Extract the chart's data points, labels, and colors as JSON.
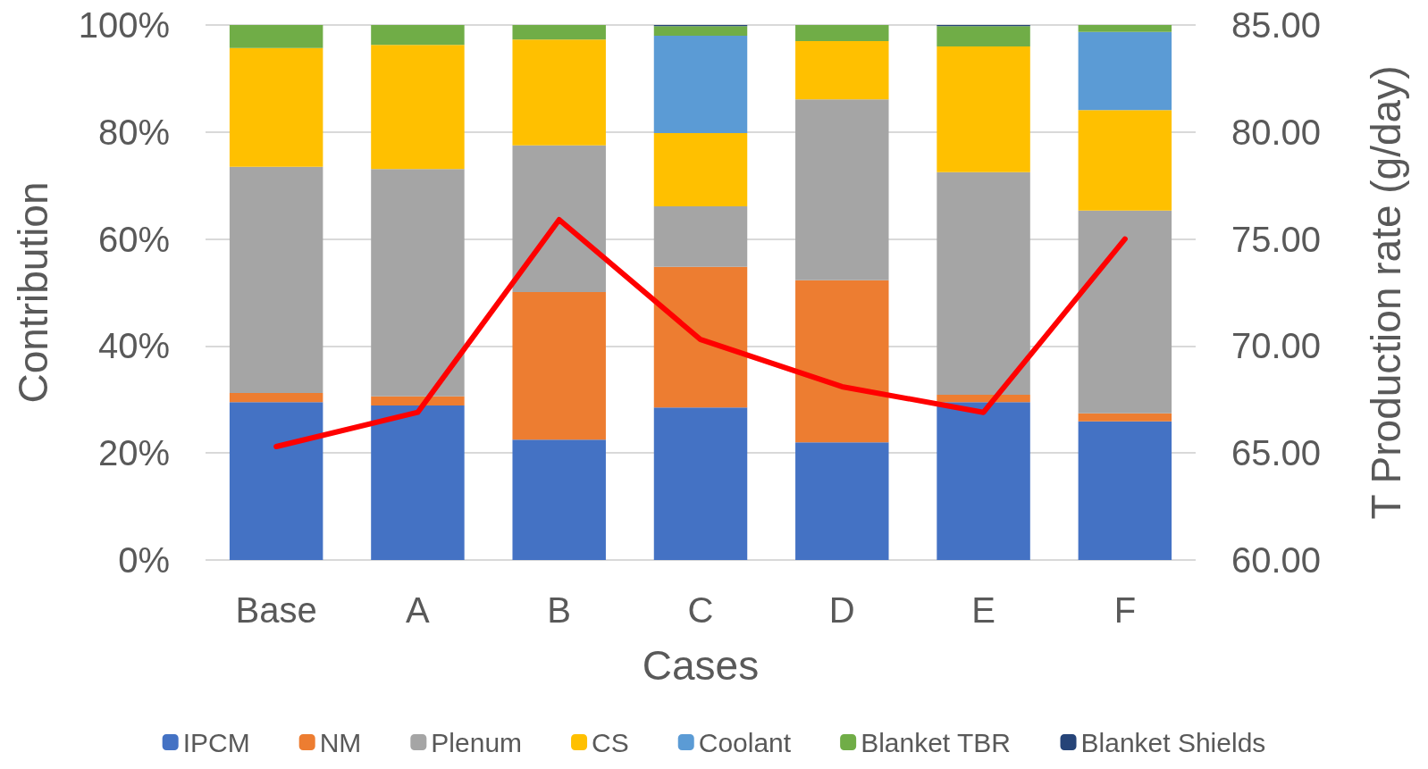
{
  "chart_data": {
    "type": "bar",
    "stacked": true,
    "xlabel": "Cases",
    "ylabel": "Contribution",
    "y2label": "T Production rate (g/day)",
    "categories": [
      "Base",
      "A",
      "B",
      "C",
      "D",
      "E",
      "F"
    ],
    "series": [
      {
        "name": "IPCM",
        "color": "#4472c4",
        "values": [
          29.5,
          28.9,
          22.5,
          28.5,
          22.0,
          29.5,
          25.9
        ]
      },
      {
        "name": "NM",
        "color": "#ed7d31",
        "values": [
          1.7,
          1.7,
          27.6,
          26.3,
          30.3,
          1.4,
          1.5
        ]
      },
      {
        "name": "Plenum",
        "color": "#a5a5a5",
        "values": [
          42.3,
          42.5,
          27.4,
          11.3,
          33.8,
          41.6,
          37.9
        ]
      },
      {
        "name": "CS",
        "color": "#ffc000",
        "values": [
          22.2,
          23.2,
          19.8,
          13.7,
          10.9,
          23.5,
          18.8
        ]
      },
      {
        "name": "Coolant",
        "color": "#5b9bd5",
        "values": [
          0,
          0,
          0,
          18.2,
          0,
          0,
          14.6
        ]
      },
      {
        "name": "Blanket TBR",
        "color": "#70ad47",
        "values": [
          4.3,
          3.7,
          2.7,
          1.8,
          3.0,
          3.8,
          1.3
        ]
      },
      {
        "name": "Blanket Shields",
        "color": "#264478",
        "values": [
          0,
          0,
          0,
          0.2,
          0,
          0.2,
          0
        ]
      },
      {
        "type": "line",
        "axis": "y2",
        "color": "#ff0000",
        "values": [
          65.3,
          66.9,
          75.9,
          70.3,
          68.1,
          66.9,
          75.0
        ]
      }
    ],
    "ylim": [
      0,
      100
    ],
    "yticks": [
      {
        "value": 0,
        "label": "0%"
      },
      {
        "value": 20,
        "label": "20%"
      },
      {
        "value": 40,
        "label": "40%"
      },
      {
        "value": 60,
        "label": "60%"
      },
      {
        "value": 80,
        "label": "80%"
      },
      {
        "value": 100,
        "label": "100%"
      }
    ],
    "y2lim": [
      60,
      85
    ],
    "y2ticks": [
      {
        "value": 60,
        "label": "60.00"
      },
      {
        "value": 65,
        "label": "65.00"
      },
      {
        "value": 70,
        "label": "70.00"
      },
      {
        "value": 75,
        "label": "75.00"
      },
      {
        "value": 80,
        "label": "80.00"
      },
      {
        "value": 85,
        "label": "85.00"
      }
    ],
    "grid": "y",
    "legend": "bottom",
    "marker": "none",
    "line_style": "solid"
  }
}
